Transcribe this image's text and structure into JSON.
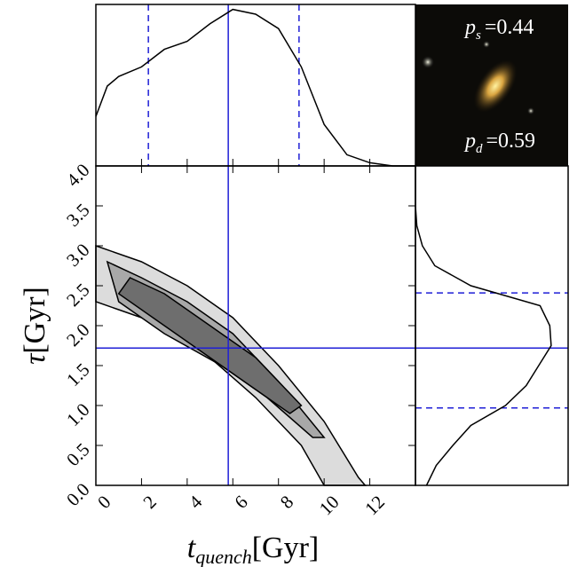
{
  "chart_data": {
    "type": "corner",
    "x_label": {
      "symbol": "t",
      "subscript": "quench",
      "unit": "[Gyr]"
    },
    "y_label": {
      "symbol": "τ",
      "unit": "[Gyr]"
    },
    "xlim": [
      0,
      14
    ],
    "ylim": [
      0,
      4
    ],
    "xticks": [
      0,
      2,
      4,
      6,
      8,
      10,
      12
    ],
    "yticks": [
      {
        "value": 0,
        "label": "0.0"
      },
      0.5,
      {
        "value": 1,
        "label": "1.0"
      },
      1.5,
      {
        "value": 2,
        "label": "2.0"
      },
      2.5,
      {
        "value": 3,
        "label": "3.0"
      },
      3.5,
      {
        "value": 4,
        "label": "4.0"
      }
    ],
    "line_color": "#1f1fd6",
    "x_median": 5.8,
    "x_interval": [
      2.3,
      8.9
    ],
    "y_median": 1.72,
    "y_interval": [
      0.97,
      2.41
    ],
    "x_marginal": {
      "x": [
        0,
        0.5,
        1,
        2,
        3,
        4,
        5,
        6,
        7,
        8,
        9,
        10,
        11,
        12,
        13,
        14
      ],
      "density": [
        0.31,
        0.5,
        0.56,
        0.62,
        0.73,
        0.78,
        0.89,
        0.98,
        0.95,
        0.86,
        0.62,
        0.26,
        0.07,
        0.02,
        0,
        0
      ]
    },
    "y_marginal": {
      "y": [
        0,
        0.25,
        0.5,
        0.75,
        1,
        1.25,
        1.5,
        1.75,
        2,
        2.25,
        2.5,
        2.75,
        3,
        3.25,
        3.5,
        4
      ],
      "density": [
        0.08,
        0.15,
        0.27,
        0.4,
        0.65,
        0.8,
        0.89,
        0.98,
        0.97,
        0.9,
        0.4,
        0.14,
        0.05,
        0.01,
        0,
        0
      ]
    },
    "contours": [
      {
        "color": "#dcdcdc",
        "x": [
          0,
          2,
          4,
          6,
          8,
          10,
          11.5,
          11.8,
          10,
          9,
          7,
          5,
          3,
          1,
          0
        ],
        "y": [
          3.0,
          2.8,
          2.5,
          2.1,
          1.5,
          0.8,
          0.1,
          0,
          0,
          0.5,
          1.1,
          1.6,
          2.0,
          2.2,
          2.3
        ]
      },
      {
        "color": "#a8a8a8",
        "x": [
          0.5,
          2,
          4,
          6,
          8,
          10,
          9.5,
          7.5,
          5.5,
          3,
          1
        ],
        "y": [
          2.8,
          2.6,
          2.3,
          1.9,
          1.3,
          0.6,
          0.6,
          1.1,
          1.5,
          1.9,
          2.3
        ]
      },
      {
        "color": "#6e6e6e",
        "x": [
          1.5,
          3,
          5,
          7,
          9,
          8.5,
          6.5,
          4.5,
          2.5,
          1
        ],
        "y": [
          2.6,
          2.4,
          2.0,
          1.6,
          1.0,
          0.9,
          1.3,
          1.7,
          2.1,
          2.4
        ]
      }
    ],
    "annotations": [
      {
        "symbol": "p",
        "subscript": "s",
        "text": "=0.44"
      },
      {
        "symbol": "p",
        "subscript": "d",
        "text": "=0.59"
      }
    ]
  }
}
